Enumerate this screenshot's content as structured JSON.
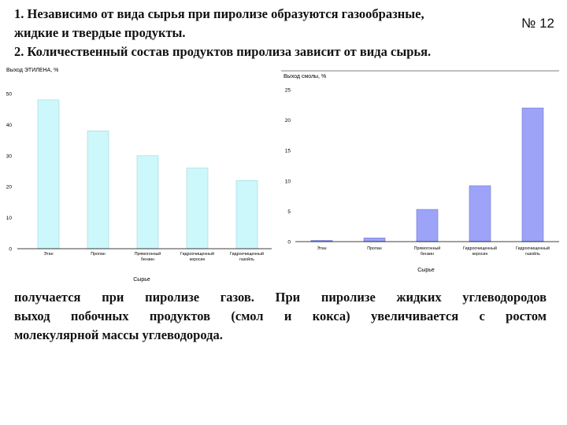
{
  "slide": {
    "heading_lines": [
      "1. Независимо от вида сырья при пиролизе образуются газообразные,",
      "жидкие и твердые продукты.",
      "2. Количественный состав продуктов пиролиза зависит от вида сырья."
    ],
    "number": "№ 12",
    "body_lines": [
      "получается при пиролизе газов. При пиролизе жидких углеводородов",
      "выход побочных продуктов (смол и кокса) увеличивается с ростом",
      "молекулярной массы углеводорода."
    ]
  },
  "chart_data": [
    {
      "type": "bar",
      "ylabel": "Выход ЭТИЛЕНА, %",
      "xlabel": "Сырье",
      "categories": [
        "Этан",
        "Пропан",
        "Прямогонный бензин",
        "Гидроочищенный керосин",
        "Гидроочищенный газойль"
      ],
      "values": [
        48,
        38,
        30,
        26,
        22
      ],
      "ylim": [
        0,
        50
      ],
      "yticks": [
        0,
        10,
        20,
        30,
        40,
        50
      ],
      "colors": {
        "bar": "#ccf7fb",
        "bar_stroke": "#9fd8de"
      },
      "grid": false
    },
    {
      "type": "bar",
      "ylabel": "Выход смолы, %",
      "xlabel": "Сырье",
      "categories": [
        "Этан",
        "Пропан",
        "Прямогонный бензин",
        "Гидроочищенный керосин",
        "Гидроочищенный газойль"
      ],
      "values": [
        0.2,
        0.6,
        5.3,
        9.2,
        22
      ],
      "ylim": [
        0,
        25
      ],
      "yticks": [
        0,
        5,
        10,
        15,
        20,
        25
      ],
      "colors": {
        "bar": "#9da4f7",
        "bar_stroke": "#6f77d6"
      },
      "grid": false
    }
  ]
}
